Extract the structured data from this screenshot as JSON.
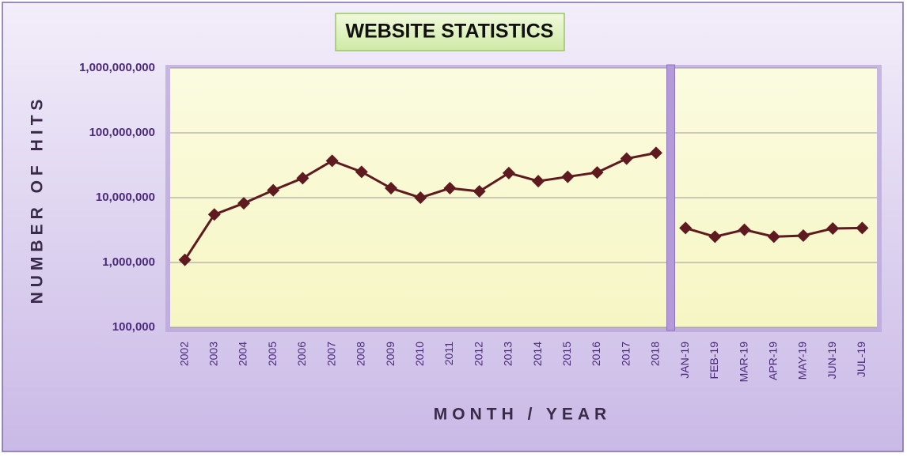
{
  "chart_data": {
    "type": "line",
    "title": "WEBSITE STATISTICS",
    "xlabel": "MONTH / YEAR",
    "ylabel": "NUMBER OF HITS",
    "categories": [
      "2002",
      "2003",
      "2004",
      "2005",
      "2006",
      "2007",
      "2008",
      "2009",
      "2010",
      "2011",
      "2012",
      "2013",
      "2014",
      "2015",
      "2016",
      "2017",
      "2018",
      "JAN-19",
      "FEB-19",
      "MAR-19",
      "APR-19",
      "MAY-19",
      "JUN-19",
      "JUL-19"
    ],
    "series": [
      {
        "color": "#5e1a1e",
        "values": [
          1100000,
          5500000,
          8200000,
          13000000,
          20000000,
          37000000,
          25000000,
          14000000,
          10000000,
          14000000,
          12500000,
          24000000,
          18000000,
          21000000,
          24500000,
          40000000,
          49000000,
          null,
          null,
          null,
          null,
          null,
          null,
          null
        ]
      },
      {
        "color": "#5e1a1e",
        "values": [
          null,
          null,
          null,
          null,
          null,
          null,
          null,
          null,
          null,
          null,
          null,
          null,
          null,
          null,
          null,
          null,
          null,
          3400000,
          2500000,
          3200000,
          2500000,
          2600000,
          3350000,
          3400000
        ]
      }
    ],
    "log_y": true,
    "ylim": [
      100000,
      1000000000
    ],
    "yticks": [
      {
        "value": 100000,
        "label": "100,000"
      },
      {
        "value": 1000000,
        "label": "1,000,000"
      },
      {
        "value": 10000000,
        "label": "10,000,000"
      },
      {
        "value": 100000000,
        "label": "100,000,000"
      },
      {
        "value": 1000000000,
        "label": "1,000,000,000"
      }
    ],
    "grid": true
  }
}
